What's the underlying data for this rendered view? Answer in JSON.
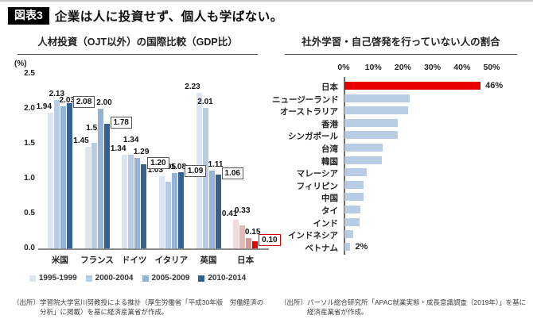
{
  "header": {
    "badge": "図表3",
    "title": "企業は人に投資せず、個人も学ばない。"
  },
  "panels": {
    "left": {
      "source": "（出所）学習院大学宮川努教授による推計（厚生労働省「平成30年版　労働経済の分析」に掲載）を基に経済産業省が作成。"
    },
    "right": {
      "source": "（出所）パーソル総合研究所「APAC就業実態・成長意識調査（2019年）」を基に経済産業省が作成。"
    }
  },
  "chart_data": [
    {
      "type": "bar",
      "title": "人材投資（OJT以外）の国際比較（GDP比）",
      "ylabel": "(%)",
      "ylim": [
        0,
        2.5
      ],
      "yticks": [
        0.0,
        0.5,
        1.0,
        1.5,
        2.0,
        2.5
      ],
      "grid": false,
      "legend_position": "bottom",
      "categories": [
        "米国",
        "フランス",
        "ドイツ",
        "イタリア",
        "英国",
        "日本"
      ],
      "series": [
        {
          "name": "1995-1999",
          "values": [
            1.94,
            1.45,
            1.34,
            1.03,
            2.23,
            0.41
          ]
        },
        {
          "name": "2000-2004",
          "values": [
            2.13,
            1.51,
            1.34,
            0.95,
            2.01,
            0.33
          ]
        },
        {
          "name": "2005-2009",
          "values": [
            2.03,
            2.0,
            1.29,
            1.08,
            1.11,
            0.15
          ]
        },
        {
          "name": "2010-2014",
          "values": [
            2.08,
            1.78,
            1.2,
            1.09,
            1.06,
            0.1
          ]
        }
      ],
      "series_colors": [
        "#dce6f2",
        "#b8cce4",
        "#95b3d7",
        "#376092"
      ],
      "highlight_category": "日本",
      "highlight_series_colors": [
        "#f2dcdb",
        "#e6b9b8",
        "#d99694",
        "#e80000"
      ],
      "boxed_series": "2010-2014",
      "box_border_color": "#595959",
      "box_border_color_highlight": "#d00000"
    },
    {
      "type": "bar-horizontal",
      "title": "社外学習・自己啓発を行っていない人の割合",
      "xlim": [
        0,
        50
      ],
      "xticks": [
        "0%",
        "10%",
        "20%",
        "30%",
        "40%",
        "50%"
      ],
      "grid": false,
      "categories": [
        "日本",
        "ニュージーランド",
        "オーストラリア",
        "香港",
        "シンガポール",
        "台湾",
        "韓国",
        "マレーシア",
        "フィリピン",
        "中国",
        "タイ",
        "インド",
        "インドネシア",
        "ベトナム"
      ],
      "values": [
        46,
        22,
        21.5,
        18,
        18,
        13,
        12.5,
        7.5,
        6.5,
        6.5,
        5.5,
        5,
        3,
        2
      ],
      "bar_color": "#b8cce4",
      "highlight_category": "日本",
      "highlight_color": "#e80000",
      "value_labels": {
        "日本": "46%",
        "ベトナム": "2%"
      }
    }
  ]
}
